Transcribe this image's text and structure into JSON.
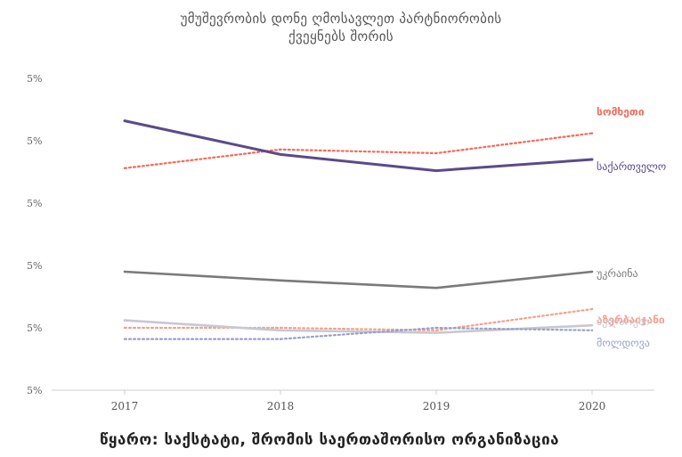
{
  "chart_data": {
    "type": "line",
    "title_lines": [
      "უმუშევრობის დონე ღმოსავლეთ პარტნიორობის",
      "ქვეყნებს შორის"
    ],
    "x": [
      "2017",
      "2018",
      "2019",
      "2020"
    ],
    "yticks": [
      "5%",
      "5%",
      "5%",
      "5%",
      "5%",
      "5%"
    ],
    "ylim": [
      0,
      25
    ],
    "series": [
      {
        "name": "სომხეთი",
        "values": [
          17.8,
          19.3,
          19.0,
          20.6
        ],
        "color": "#f26b5b",
        "dash": "dotted"
      },
      {
        "name": "საქართველო",
        "values": [
          21.6,
          18.9,
          17.6,
          18.5
        ],
        "color": "#5c4a8a",
        "dash": "solid"
      },
      {
        "name": "უკრაინა",
        "values": [
          9.5,
          8.8,
          8.2,
          9.5
        ],
        "color": "#7a7a7a",
        "dash": "solid"
      },
      {
        "name": "აზერბაიჯანი",
        "values": [
          5.0,
          5.0,
          4.8,
          6.5
        ],
        "color": "#f4a090",
        "dash": "dotted"
      },
      {
        "name": "ბელარუსი",
        "values": [
          5.6,
          4.8,
          4.6,
          5.2
        ],
        "color": "#c8c8d0",
        "dash": "solid"
      },
      {
        "name": "მოლდოვა",
        "values": [
          4.1,
          4.1,
          5.0,
          4.8
        ],
        "color": "#9aa0c8",
        "dash": "dotted"
      }
    ],
    "grid": false,
    "legend": "inline-right"
  },
  "source": "წყარო: საქსტატი, შრომის საერთაშორისო ორგანიზაცია"
}
